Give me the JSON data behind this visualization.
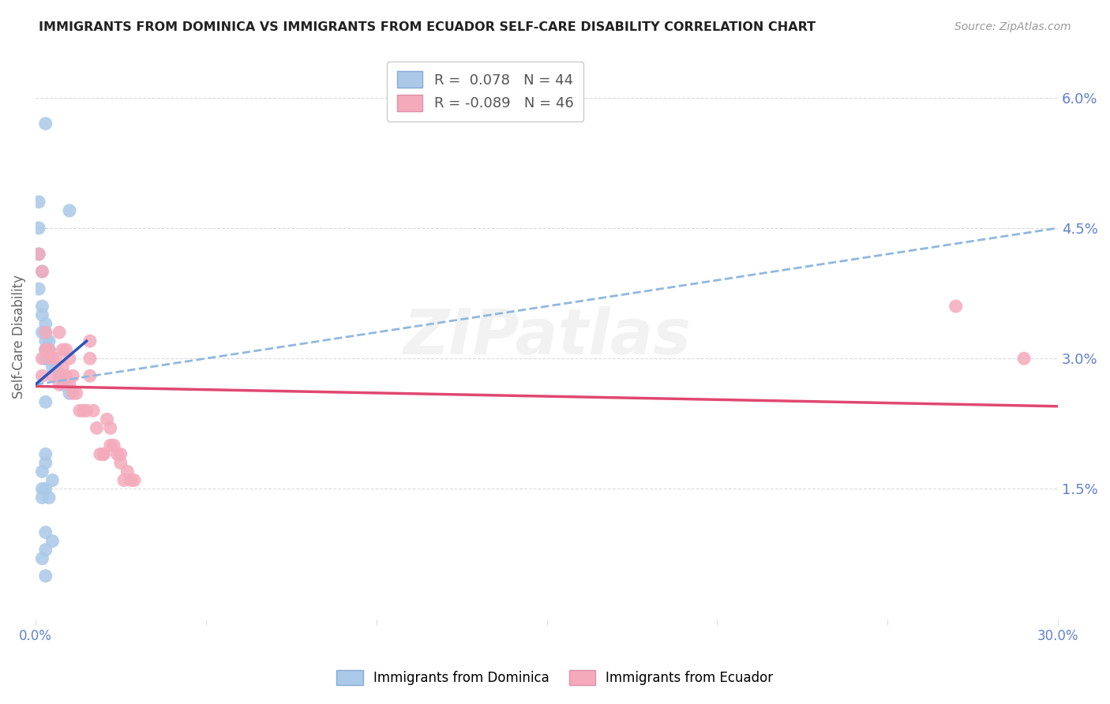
{
  "title": "IMMIGRANTS FROM DOMINICA VS IMMIGRANTS FROM ECUADOR SELF-CARE DISABILITY CORRELATION CHART",
  "source": "Source: ZipAtlas.com",
  "ylabel": "Self-Care Disability",
  "xlim": [
    0.0,
    0.3
  ],
  "ylim": [
    0.0,
    0.065
  ],
  "x_ticks": [
    0.0,
    0.05,
    0.1,
    0.15,
    0.2,
    0.25,
    0.3
  ],
  "y_ticks": [
    0.0,
    0.015,
    0.03,
    0.045,
    0.06
  ],
  "y_tick_labels_right": [
    "",
    "1.5%",
    "3.0%",
    "4.5%",
    "6.0%"
  ],
  "dominica_color": "#aac8e8",
  "ecuador_color": "#f4aabb",
  "dominica_line_color": "#2855c0",
  "ecuador_line_color": "#e04870",
  "dashed_line_color": "#90b8e0",
  "background_color": "#ffffff",
  "grid_color": "#cccccc",
  "dominica_x": [
    0.003,
    0.001,
    0.01,
    0.001,
    0.001,
    0.002,
    0.001,
    0.002,
    0.002,
    0.003,
    0.002,
    0.003,
    0.003,
    0.003,
    0.004,
    0.004,
    0.004,
    0.005,
    0.006,
    0.007,
    0.007,
    0.008,
    0.008,
    0.009,
    0.01,
    0.003,
    0.004,
    0.003,
    0.003,
    0.003,
    0.004,
    0.003,
    0.003,
    0.002,
    0.005,
    0.003,
    0.002,
    0.004,
    0.002,
    0.003,
    0.005,
    0.003,
    0.002,
    0.003
  ],
  "dominica_y": [
    0.057,
    0.048,
    0.047,
    0.045,
    0.042,
    0.04,
    0.038,
    0.036,
    0.035,
    0.034,
    0.033,
    0.033,
    0.032,
    0.031,
    0.031,
    0.03,
    0.03,
    0.029,
    0.029,
    0.028,
    0.028,
    0.028,
    0.027,
    0.027,
    0.026,
    0.025,
    0.032,
    0.031,
    0.03,
    0.03,
    0.031,
    0.019,
    0.018,
    0.017,
    0.016,
    0.015,
    0.015,
    0.014,
    0.014,
    0.01,
    0.009,
    0.008,
    0.007,
    0.005
  ],
  "ecuador_x": [
    0.001,
    0.002,
    0.003,
    0.003,
    0.004,
    0.005,
    0.005,
    0.006,
    0.007,
    0.007,
    0.008,
    0.008,
    0.008,
    0.009,
    0.009,
    0.01,
    0.01,
    0.011,
    0.011,
    0.012,
    0.013,
    0.014,
    0.015,
    0.016,
    0.016,
    0.016,
    0.017,
    0.018,
    0.019,
    0.02,
    0.02,
    0.021,
    0.022,
    0.022,
    0.023,
    0.024,
    0.025,
    0.025,
    0.026,
    0.027,
    0.028,
    0.029,
    0.27,
    0.29,
    0.002,
    0.002
  ],
  "ecuador_y": [
    0.042,
    0.04,
    0.033,
    0.031,
    0.031,
    0.03,
    0.028,
    0.03,
    0.033,
    0.027,
    0.031,
    0.029,
    0.028,
    0.031,
    0.028,
    0.03,
    0.027,
    0.028,
    0.026,
    0.026,
    0.024,
    0.024,
    0.024,
    0.032,
    0.03,
    0.028,
    0.024,
    0.022,
    0.019,
    0.019,
    0.019,
    0.023,
    0.022,
    0.02,
    0.02,
    0.019,
    0.019,
    0.018,
    0.016,
    0.017,
    0.016,
    0.016,
    0.036,
    0.03,
    0.03,
    0.028
  ],
  "blue_line_x0": 0.0,
  "blue_line_y0": 0.027,
  "blue_line_x1": 0.015,
  "blue_line_y1": 0.032,
  "dash_line_x0": 0.0,
  "dash_line_y0": 0.027,
  "dash_line_x1": 0.3,
  "dash_line_y1": 0.045,
  "pink_line_x0": 0.0,
  "pink_line_y0": 0.0268,
  "pink_line_x1": 0.3,
  "pink_line_y1": 0.0245
}
